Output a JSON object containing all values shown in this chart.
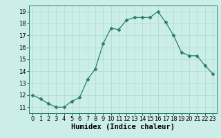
{
  "x": [
    0,
    1,
    2,
    3,
    4,
    5,
    6,
    7,
    8,
    9,
    10,
    11,
    12,
    13,
    14,
    15,
    16,
    17,
    18,
    19,
    20,
    21,
    22,
    23
  ],
  "y": [
    12.0,
    11.7,
    11.3,
    11.0,
    11.0,
    11.5,
    11.8,
    13.3,
    14.2,
    16.3,
    17.6,
    17.5,
    18.3,
    18.5,
    18.5,
    18.5,
    19.0,
    18.1,
    17.0,
    15.6,
    15.3,
    15.3,
    14.5,
    13.8
  ],
  "line_color": "#2a7d6f",
  "marker": "D",
  "marker_size": 2.5,
  "bg_color": "#cceee8",
  "grid_color": "#b0ddd4",
  "xlabel": "Humidex (Indice chaleur)",
  "xlim": [
    -0.5,
    23.5
  ],
  "ylim": [
    10.5,
    19.5
  ],
  "yticks": [
    11,
    12,
    13,
    14,
    15,
    16,
    17,
    18,
    19
  ],
  "xticks": [
    0,
    1,
    2,
    3,
    4,
    5,
    6,
    7,
    8,
    9,
    10,
    11,
    12,
    13,
    14,
    15,
    16,
    17,
    18,
    19,
    20,
    21,
    22,
    23
  ],
  "tick_label_fontsize": 6,
  "xlabel_fontsize": 7.5
}
